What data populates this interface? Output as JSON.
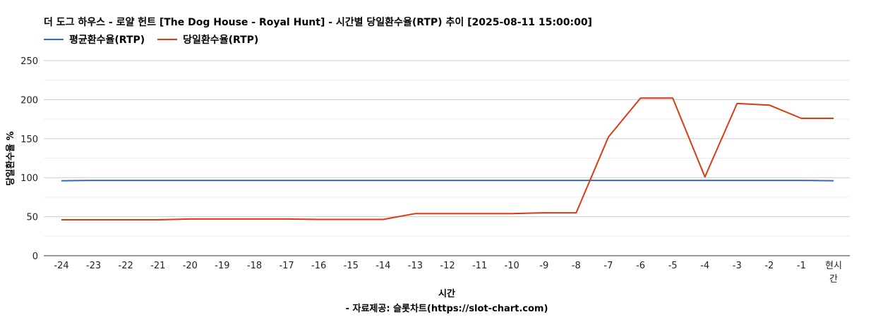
{
  "chart_data": {
    "type": "line",
    "title": "더 도그 하우스 - 로얄 헌트 [The Dog House - Royal Hunt] - 시간별 당일환수율(RTP) 추이 [2025-08-11 15:00:00]",
    "categories": [
      "-24",
      "-23",
      "-22",
      "-21",
      "-20",
      "-19",
      "-18",
      "-17",
      "-16",
      "-15",
      "-14",
      "-13",
      "-12",
      "-11",
      "-10",
      "-9",
      "-8",
      "-7",
      "-6",
      "-5",
      "-4",
      "-3",
      "-2",
      "-1",
      "현시간"
    ],
    "series": [
      {
        "name": "평균환수율(RTP)",
        "color": "#3366cc",
        "values": [
          96,
          96.5,
          96.5,
          96.5,
          96.5,
          96.5,
          96.5,
          96.5,
          96.5,
          96.5,
          96.5,
          96.5,
          96.5,
          96.5,
          96.5,
          96.5,
          96.5,
          96.5,
          96.5,
          96.5,
          96.5,
          96.5,
          96.5,
          96.5,
          96
        ]
      },
      {
        "name": "당일환수율(RTP)",
        "color": "#dc3912",
        "values": [
          46,
          46,
          46,
          46,
          47,
          47,
          47,
          47,
          46.5,
          46.5,
          46.5,
          54,
          54,
          54,
          54,
          55,
          55,
          152,
          202,
          202,
          101,
          195,
          193,
          176,
          176
        ]
      }
    ],
    "xlabel": "시간",
    "source_label": "- 자료제공: 슬롯차트(https://slot-chart.com)",
    "ylabel": "당일환수율 %",
    "ylim": [
      0,
      250
    ],
    "yticks": [
      0,
      50,
      100,
      150,
      200,
      250
    ],
    "grid": true,
    "legend_position": "top-left"
  }
}
